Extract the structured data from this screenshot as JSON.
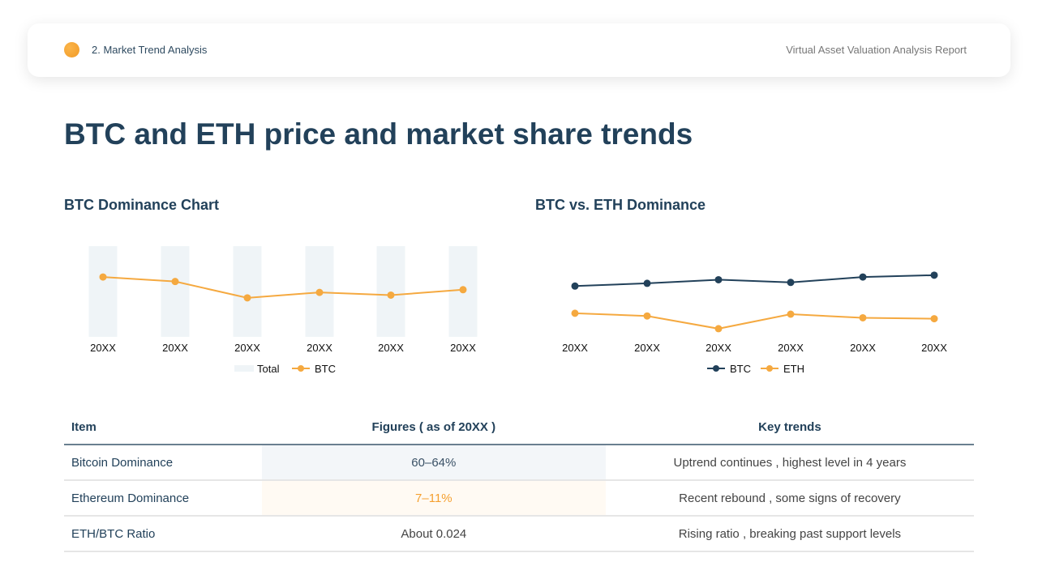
{
  "header": {
    "section": "2. Market Trend Analysis",
    "report": "Virtual Asset Valuation Analysis Report"
  },
  "title": "BTC and ETH price and market share trends",
  "colors": {
    "btc_orange": "#f5a940",
    "navy": "#22415a",
    "bar": "#eff4f7"
  },
  "chart_data": [
    {
      "type": "bar+line",
      "title": "BTC Dominance Chart",
      "categories": [
        "20XX",
        "20XX",
        "20XX",
        "20XX",
        "20XX",
        "20XX"
      ],
      "ylim": [
        0,
        100
      ],
      "grid": false,
      "series": [
        {
          "name": "Total",
          "type": "bar",
          "values": [
            100,
            100,
            100,
            100,
            100,
            100
          ]
        },
        {
          "name": "BTC",
          "type": "line",
          "values": [
            66,
            61,
            43,
            49,
            46,
            52
          ]
        }
      ],
      "legend": "bottom"
    },
    {
      "type": "line",
      "title": "BTC vs. ETH Dominance",
      "categories": [
        "20XX",
        "20XX",
        "20XX",
        "20XX",
        "20XX",
        "20XX"
      ],
      "ylim": [
        0,
        100
      ],
      "grid": false,
      "series": [
        {
          "name": "BTC",
          "values": [
            56,
            59,
            63,
            60,
            66,
            68
          ]
        },
        {
          "name": "ETH",
          "values": [
            26,
            23,
            9,
            25,
            21,
            20
          ]
        }
      ],
      "legend": "bottom"
    }
  ],
  "table": {
    "headers": [
      "Item",
      "Figures ( as of 20XX )",
      "Key trends"
    ],
    "rows": [
      [
        "Bitcoin Dominance",
        "60–64%",
        "Uptrend continues , highest level in 4 years"
      ],
      [
        "Ethereum Dominance",
        "7–11%",
        "Recent rebound , some signs of recovery"
      ],
      [
        "ETH/BTC Ratio",
        "About 0.024",
        "Rising ratio , breaking past support levels"
      ]
    ]
  }
}
